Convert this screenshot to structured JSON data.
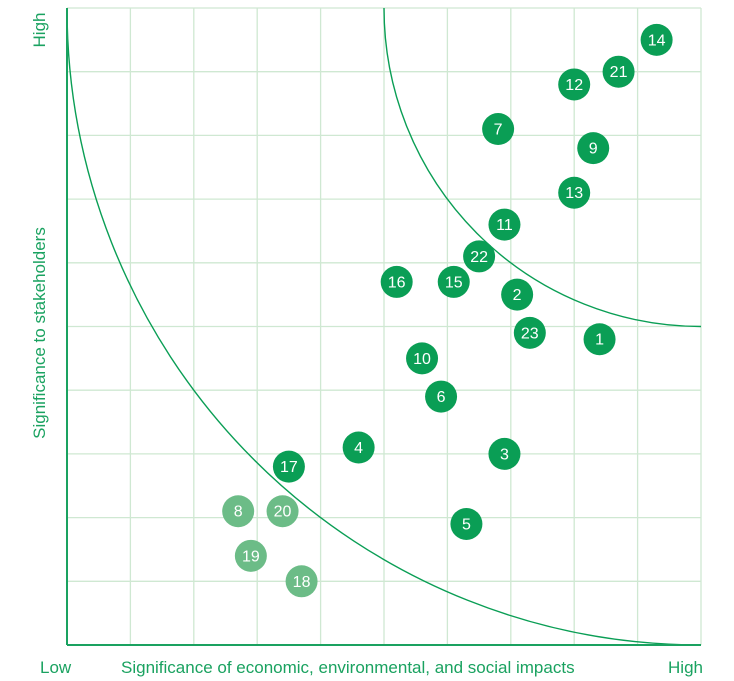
{
  "chart_data": {
    "type": "scatter",
    "xlabel": "Significance of economic, environmental, and social impacts",
    "ylabel": "Significance to stakeholders",
    "x_low_label": "Low",
    "x_high_label": "High",
    "y_high_label": "High",
    "xlim": [
      0,
      10
    ],
    "ylim": [
      0,
      10
    ],
    "grid": true,
    "colors": {
      "primary": "#0a9e55",
      "muted": "#6cbc87",
      "grid": "#cfe8d2",
      "axis": "#1aa260"
    },
    "points": [
      {
        "label": "1",
        "x": 8.4,
        "y": 4.8,
        "tier": "primary"
      },
      {
        "label": "2",
        "x": 7.1,
        "y": 5.5,
        "tier": "primary"
      },
      {
        "label": "3",
        "x": 6.9,
        "y": 3.0,
        "tier": "primary"
      },
      {
        "label": "4",
        "x": 4.6,
        "y": 3.1,
        "tier": "primary"
      },
      {
        "label": "5",
        "x": 6.3,
        "y": 1.9,
        "tier": "primary"
      },
      {
        "label": "6",
        "x": 5.9,
        "y": 3.9,
        "tier": "primary"
      },
      {
        "label": "7",
        "x": 6.8,
        "y": 8.1,
        "tier": "primary"
      },
      {
        "label": "8",
        "x": 2.7,
        "y": 2.1,
        "tier": "muted"
      },
      {
        "label": "9",
        "x": 8.3,
        "y": 7.8,
        "tier": "primary"
      },
      {
        "label": "10",
        "x": 5.6,
        "y": 4.5,
        "tier": "primary"
      },
      {
        "label": "11",
        "x": 6.9,
        "y": 6.6,
        "tier": "primary"
      },
      {
        "label": "12",
        "x": 8.0,
        "y": 8.8,
        "tier": "primary"
      },
      {
        "label": "13",
        "x": 8.0,
        "y": 7.1,
        "tier": "primary"
      },
      {
        "label": "14",
        "x": 9.3,
        "y": 9.5,
        "tier": "primary"
      },
      {
        "label": "15",
        "x": 6.1,
        "y": 5.7,
        "tier": "primary"
      },
      {
        "label": "16",
        "x": 5.2,
        "y": 5.7,
        "tier": "primary"
      },
      {
        "label": "17",
        "x": 3.5,
        "y": 2.8,
        "tier": "primary"
      },
      {
        "label": "18",
        "x": 3.7,
        "y": 1.0,
        "tier": "muted"
      },
      {
        "label": "19",
        "x": 2.9,
        "y": 1.4,
        "tier": "muted"
      },
      {
        "label": "20",
        "x": 3.4,
        "y": 2.1,
        "tier": "muted"
      },
      {
        "label": "21",
        "x": 8.7,
        "y": 9.0,
        "tier": "primary"
      },
      {
        "label": "22",
        "x": 6.5,
        "y": 6.1,
        "tier": "primary"
      },
      {
        "label": "23",
        "x": 7.3,
        "y": 4.9,
        "tier": "primary"
      }
    ],
    "thresholds": [
      {
        "type": "quarter-circle",
        "center": [
          0,
          0
        ],
        "radius": 10
      },
      {
        "type": "quarter-circle",
        "center": [
          10,
          10
        ],
        "radius": 5
      }
    ]
  }
}
